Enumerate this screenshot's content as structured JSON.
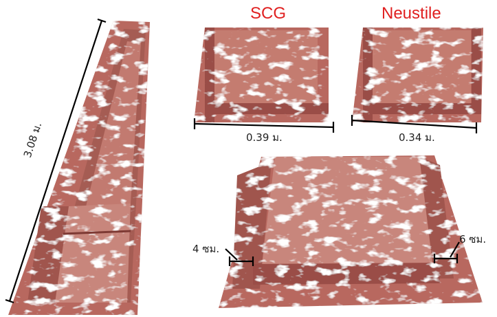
{
  "headings": {
    "left_sample": "SCG",
    "right_sample": "Neustile"
  },
  "dimensions": {
    "long_length": "3.08 ม.",
    "scg_width": "0.39 ม.",
    "neustile_width": "0.34 ม.",
    "left_gap": "4 ซม.",
    "right_gap": "6 ซม."
  },
  "colors": {
    "heading": "#e02020",
    "material": "#b8685f",
    "material_dark": "#7e3a34",
    "highlight": "#ffffff"
  }
}
